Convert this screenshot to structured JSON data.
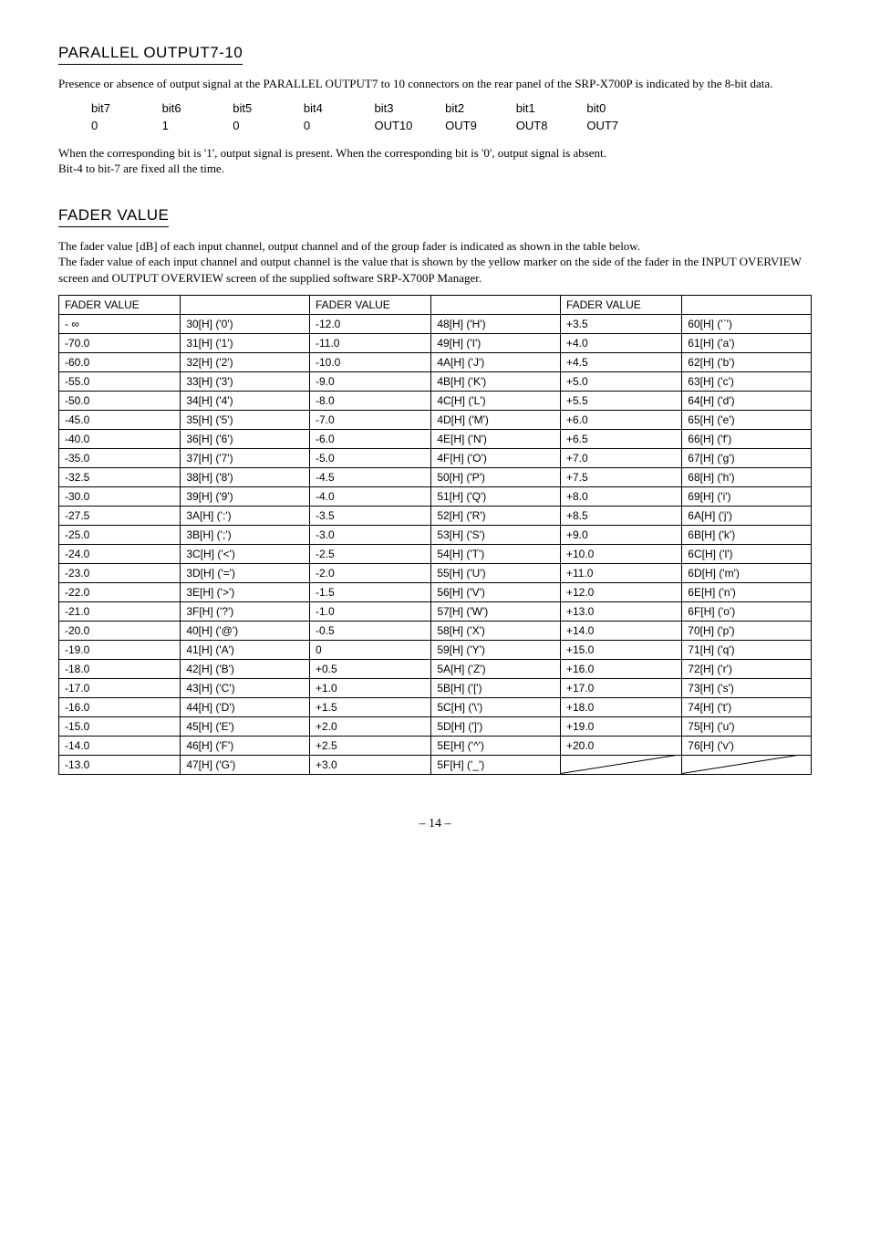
{
  "parallel": {
    "title": "PARALLEL OUTPUT7-10",
    "intro": "Presence or absence of output signal at the PARALLEL OUTPUT7 to 10 connectors on the rear panel of the SRP-X700P is indicated by the 8-bit data.",
    "head": [
      "bit7",
      "bit6",
      "bit5",
      "bit4",
      "bit3",
      "bit2",
      "bit1",
      "bit0"
    ],
    "vals": [
      "0",
      "1",
      "0",
      "0",
      "OUT10",
      "OUT9",
      "OUT8",
      "OUT7"
    ],
    "note1": "When the corresponding bit is '1', output signal is present. When the corresponding bit is '0', output signal is absent.",
    "note2": "Bit-4 to bit-7 are fixed all the time."
  },
  "fader": {
    "title": "FADER VALUE",
    "intro1": "The fader value [dB] of each input channel, output channel and of the group fader is indicated as shown in the table below.",
    "intro2": "The fader value of each input channel and output channel is the value that is shown by the yellow marker on the side of the fader in the INPUT OVERVIEW screen and OUTPUT OVERVIEW screen of the supplied software SRP-X700P Manager.",
    "header": "FADER VALUE",
    "rows": [
      [
        "- ∞",
        "30[H] ('0')",
        "-12.0",
        "48[H] ('H')",
        "+3.5",
        "60[H] ('`')"
      ],
      [
        "-70.0",
        "31[H] ('1')",
        "-11.0",
        "49[H] ('I')",
        "+4.0",
        "61[H] ('a')"
      ],
      [
        "-60.0",
        "32[H] ('2')",
        "-10.0",
        "4A[H] ('J')",
        "+4.5",
        "62[H] ('b')"
      ],
      [
        "-55.0",
        "33[H] ('3')",
        "-9.0",
        "4B[H] ('K')",
        "+5.0",
        "63[H] ('c')"
      ],
      [
        "-50.0",
        "34[H] ('4')",
        "-8.0",
        "4C[H] ('L')",
        "+5.5",
        "64[H] ('d')"
      ],
      [
        "-45.0",
        "35[H] ('5')",
        "-7.0",
        "4D[H] ('M')",
        "+6.0",
        "65[H] ('e')"
      ],
      [
        "-40.0",
        "36[H] ('6')",
        "-6.0",
        "4E[H] ('N')",
        "+6.5",
        "66[H] ('f')"
      ],
      [
        "-35.0",
        "37[H] ('7')",
        "-5.0",
        "4F[H] ('O')",
        "+7.0",
        "67[H] ('g')"
      ],
      [
        "-32.5",
        "38[H] ('8')",
        "-4.5",
        "50[H] ('P')",
        "+7.5",
        "68[H] ('h')"
      ],
      [
        "-30.0",
        "39[H] ('9')",
        "-4.0",
        "51[H] ('Q')",
        "+8.0",
        "69[H] ('i')"
      ],
      [
        "-27.5",
        "3A[H] (':')",
        "-3.5",
        "52[H] ('R')",
        "+8.5",
        "6A[H] ('j')"
      ],
      [
        "-25.0",
        "3B[H] (';')",
        "-3.0",
        "53[H] ('S')",
        "+9.0",
        "6B[H] ('k')"
      ],
      [
        "-24.0",
        "3C[H] ('<')",
        "-2.5",
        "54[H] ('T')",
        "+10.0",
        "6C[H] ('l')"
      ],
      [
        "-23.0",
        "3D[H] ('=')",
        "-2.0",
        "55[H] ('U')",
        "+11.0",
        "6D[H] ('m')"
      ],
      [
        "-22.0",
        "3E[H] ('>')",
        "-1.5",
        "56[H] ('V')",
        "+12.0",
        "6E[H] ('n')"
      ],
      [
        "-21.0",
        "3F[H] ('?')",
        "-1.0",
        "57[H] ('W')",
        "+13.0",
        "6F[H] ('o')"
      ],
      [
        "-20.0",
        "40[H] ('@')",
        "-0.5",
        "58[H] ('X')",
        "+14.0",
        "70[H] ('p')"
      ],
      [
        "-19.0",
        "41[H] ('A')",
        "0",
        "59[H] ('Y')",
        "+15.0",
        "71[H] ('q')"
      ],
      [
        "-18.0",
        "42[H] ('B')",
        "+0.5",
        "5A[H] ('Z')",
        "+16.0",
        "72[H] ('r')"
      ],
      [
        "-17.0",
        "43[H] ('C')",
        "+1.0",
        "5B[H] ('[')",
        "+17.0",
        "73[H] ('s')"
      ],
      [
        "-16.0",
        "44[H] ('D')",
        "+1.5",
        "5C[H] ('\\')",
        "+18.0",
        "74[H] ('t')"
      ],
      [
        "-15.0",
        "45[H] ('E')",
        "+2.0",
        "5D[H] (']')",
        "+19.0",
        "75[H] ('u')"
      ],
      [
        "-14.0",
        "46[H] ('F')",
        "+2.5",
        "5E[H] ('^')",
        "+20.0",
        "76[H] ('v')"
      ],
      [
        "-13.0",
        "47[H] ('G')",
        "+3.0",
        "5F[H] ('_')",
        "",
        ""
      ]
    ]
  },
  "pagenum": "– 14 –"
}
